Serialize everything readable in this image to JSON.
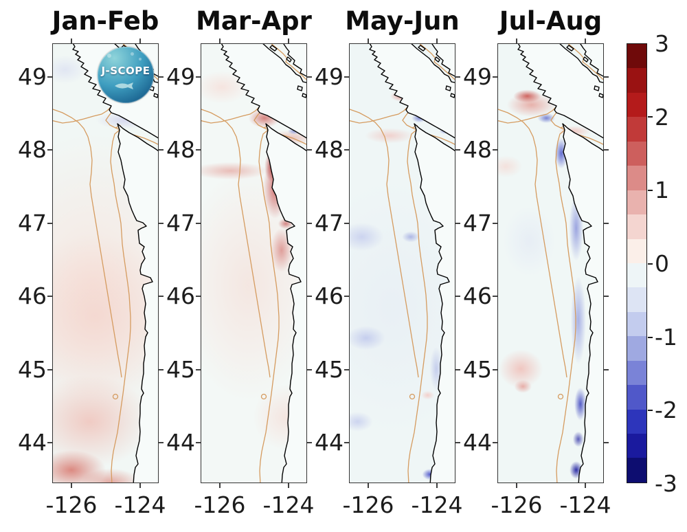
{
  "figure": {
    "kind": "four-panel coastal anomaly maps with shared diverging colorbar",
    "region": "Pacific Northwest coast: Vancouver Island to southern Oregon",
    "coastline_color": "#000000",
    "isobath_color": "#d59b5f",
    "background": "#ffffff"
  },
  "logo": {
    "label": "J-SCOPE"
  },
  "axes": {
    "y_tick_labels": [
      "49",
      "48",
      "47",
      "46",
      "45",
      "44"
    ],
    "x_tick_labels": [
      "-126",
      "-124"
    ]
  },
  "panels": [
    {
      "title": "Jan-Feb"
    },
    {
      "title": "Mar-Apr"
    },
    {
      "title": "May-Jun"
    },
    {
      "title": "Jul-Aug"
    }
  ],
  "colorbar": {
    "tick_labels": [
      "3",
      "2",
      "1",
      "0",
      "-1",
      "-2",
      "-3"
    ],
    "max": 3,
    "min": -3,
    "n_segments": 18,
    "segment_colors": [
      "#6f0a0a",
      "#9a1212",
      "#b41b1b",
      "#c13a39",
      "#cd5f5d",
      "#dc8b88",
      "#e9b2ae",
      "#f4d5d0",
      "#fbefe9",
      "#eef5f7",
      "#dde4f4",
      "#c3ccee",
      "#9fa9e1",
      "#7a83d7",
      "#5058c9",
      "#2d35bb",
      "#1a1a9e",
      "#0d0d70"
    ]
  },
  "chart_data": {
    "type": "heatmap",
    "title": "",
    "panel_titles": [
      "Jan-Feb",
      "Mar-Apr",
      "May-Jun",
      "Jul-Aug"
    ],
    "x": {
      "ticks": [
        -126,
        -124
      ],
      "range": [
        -126.66,
        -123.56
      ],
      "label_units": "longitude"
    },
    "y": {
      "ticks": [
        49,
        48,
        47,
        46,
        45,
        44
      ],
      "range": [
        43.45,
        49.46
      ],
      "label_units": "latitude"
    },
    "colorbar": {
      "range": [
        -3,
        3
      ],
      "ticks": [
        3,
        2,
        1,
        0,
        -1,
        -2,
        -3
      ],
      "n_segments": 18,
      "palette": "dark red → white → dark blue diverging"
    },
    "map_layers": [
      "anomaly field",
      "orange shelf isobath contours (two lines + small closed ring near 44.6N)",
      "black coastline with Vancouver Island, Strait of Juan de Fuca, Strait of Georgia, Grays Harbor, Willapa Bay, Columbia River mouth"
    ],
    "panels": [
      {
        "title": "Jan-Feb",
        "anomaly_summary": "Weak warm anomaly (+0.3 to +1) over most offshore water, strongest (+1 to +1.5) in the south/bottom of domain; near-zero close to shore; slight cool tint (-0.3) in the Strait of Juan de Fuca."
      },
      {
        "title": "Mar-Apr",
        "anomaly_summary": "Strong warm band (+1.5 to +2.5) hugging the Washington coast from the Juan de Fuca mouth to ~46.5N; +0.5 warm over most offshore water; small cool spot (-0.5) inside the strait."
      },
      {
        "title": "May-Jun",
        "anomaly_summary": "Mixed weak anomalies: cool patches (-0.5 to -1) offshore and along the Oregon coast, cool core (-1.5) at the Juan de Fuca mouth and near 43.6N; warm (+0.5 to +1) along the Vancouver Island west coast."
      },
      {
        "title": "Jul-Aug",
        "anomaly_summary": "Strong cool anomaly (-1.5 to -3) in a nearshore band along the Washington-Oregon coast (47N to 43.5N) and at the Juan de Fuca mouth; warm patch (+1 to +2) northwest of Vancouver Island and (+0.5 to +1) offshore near 44.5N."
      }
    ]
  }
}
